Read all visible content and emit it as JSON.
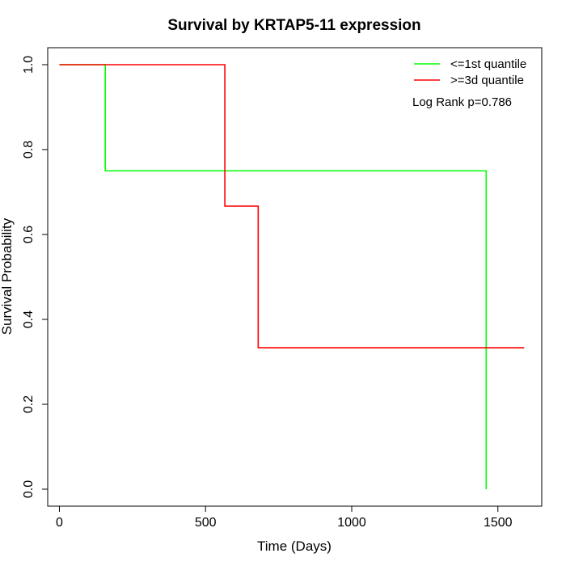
{
  "chart_data": {
    "type": "line",
    "title": "Survival by KRTAP5-11 expression",
    "xlabel": "Time (Days)",
    "ylabel": "Survival Probability",
    "xlim": [
      -40,
      1650
    ],
    "ylim": [
      -0.04,
      1.04
    ],
    "x_ticks": [
      0,
      500,
      1000,
      1500
    ],
    "y_ticks": [
      0.0,
      0.2,
      0.4,
      0.6,
      0.8,
      1.0
    ],
    "x_tick_labels": [
      "0",
      "500",
      "1000",
      "1500"
    ],
    "y_tick_labels": [
      "0.0",
      "0.2",
      "0.4",
      "0.6",
      "0.8",
      "1.0"
    ],
    "grid": false,
    "legend_position": "top-right",
    "annotation": "Log Rank p=0.786",
    "series": [
      {
        "name": "<=1st quantile",
        "color": "#00ff00",
        "step": true,
        "x": [
          0,
          157,
          1460,
          1460
        ],
        "y": [
          1.0,
          0.75,
          0.75,
          0.0
        ]
      },
      {
        "name": ">=3d quantile",
        "color": "#ff0000",
        "step": true,
        "x": [
          0,
          566,
          680,
          1590
        ],
        "y": [
          1.0,
          0.6667,
          0.3333,
          0.3333
        ]
      }
    ]
  }
}
